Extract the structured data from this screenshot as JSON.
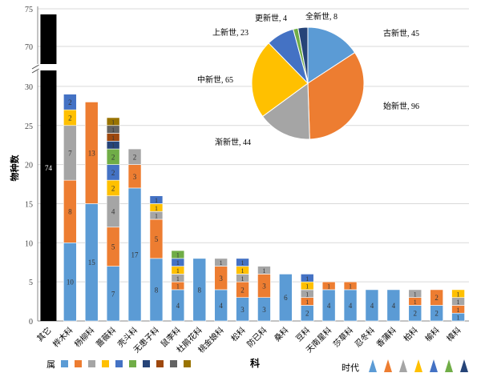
{
  "chart_data": {
    "type": "bar",
    "stacked": true,
    "ylabel": "物种数",
    "xlabel": "科",
    "yticks": [
      0,
      5,
      10,
      15,
      20,
      25,
      30,
      70,
      75
    ],
    "ylim_lower": [
      0,
      30
    ],
    "ylim_upper": [
      70,
      75
    ],
    "axis_break": true,
    "legend_genus_label": "属",
    "legend_era_label": "时代",
    "genus_colors": [
      "#5B9BD5",
      "#ED7D31",
      "#A5A5A5",
      "#FFC000",
      "#4472C4",
      "#70AD47",
      "#264478",
      "#9E480E",
      "#636363",
      "#997300"
    ],
    "other_color": "#000000",
    "categories": [
      "其它",
      "桦木科",
      "杨柳科",
      "蔷薇科",
      "壳斗科",
      "无患子科",
      "鼠李科",
      "杜鹃花科",
      "桃金娘科",
      "松科",
      "防已科",
      "桑科",
      "豆科",
      "天南星科",
      "莎草科",
      "忍冬科",
      "香蒲科",
      "柏科",
      "榆科",
      "樟科"
    ],
    "stacks": [
      [
        74
      ],
      [
        10,
        8,
        7,
        2,
        2
      ],
      [
        15,
        13
      ],
      [
        7,
        5,
        4,
        2,
        2,
        2,
        1,
        1,
        1,
        1
      ],
      [
        17,
        3,
        2
      ],
      [
        8,
        5,
        1,
        1,
        1
      ],
      [
        4,
        1,
        1,
        1,
        1,
        1
      ],
      [
        8
      ],
      [
        4,
        3,
        1
      ],
      [
        3,
        2,
        1,
        1,
        1
      ],
      [
        3,
        3,
        1
      ],
      [
        6
      ],
      [
        2,
        1,
        1,
        1,
        1
      ],
      [
        4,
        1
      ],
      [
        4,
        1
      ],
      [
        4
      ],
      [
        4
      ],
      [
        2,
        1,
        1
      ],
      [
        2,
        2
      ],
      [
        1,
        1,
        1,
        1
      ]
    ],
    "pie": {
      "type": "pie",
      "labels": [
        "古新世",
        "始新世",
        "渐新世",
        "中新世",
        "上新世",
        "更新世",
        "全新世"
      ],
      "values": [
        45,
        96,
        44,
        65,
        23,
        4,
        8
      ],
      "colors": [
        "#5B9BD5",
        "#ED7D31",
        "#A5A5A5",
        "#FFC000",
        "#4472C4",
        "#70AD47",
        "#264478"
      ]
    }
  }
}
